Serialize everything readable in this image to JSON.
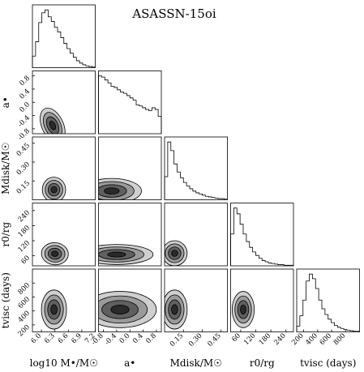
{
  "chart_data": {
    "type": "corner",
    "title": "ASASSN-15oi",
    "parameters": [
      {
        "key": "logM",
        "label_main": "log10 M•/M☉",
        "label_side": "",
        "range": [
          5.8,
          7.2
        ],
        "ticks": [
          "6.0",
          "6.3",
          "6.6",
          "6.9",
          "7.2"
        ],
        "tick_values": [
          6.0,
          6.3,
          6.6,
          6.9,
          7.2
        ],
        "peak": 6.25,
        "spread": 0.2
      },
      {
        "key": "a",
        "label_main": "a•",
        "label_side": "a•",
        "range": [
          -0.95,
          0.95
        ],
        "ticks": [
          "-0.8",
          "-0.4",
          "0.0",
          "0.4",
          "0.8"
        ],
        "tick_values": [
          -0.8,
          -0.4,
          0.0,
          0.4,
          0.8
        ],
        "peak": -0.75,
        "spread": 0.7
      },
      {
        "key": "Mdisk",
        "label_main": "Mdisk/M☉",
        "label_side": "Mdisk/M☉",
        "range": [
          0.0,
          0.5
        ],
        "ticks": [
          "0.15",
          "0.30",
          "0.45"
        ],
        "tick_values": [
          0.15,
          0.3,
          0.45
        ],
        "side_ticks": [
          "0.15",
          "0.30",
          "0.45"
        ],
        "peak": 0.07,
        "spread": 0.06
      },
      {
        "key": "r0",
        "label_main": "r0/rg",
        "label_side": "r0/rg",
        "range": [
          20,
          270
        ],
        "ticks": [
          "60",
          "120",
          "180",
          "240"
        ],
        "tick_values": [
          60,
          120,
          180,
          240
        ],
        "side_ticks": [
          "60",
          "120",
          "180",
          "240"
        ],
        "peak": 65,
        "spread": 30
      },
      {
        "key": "tvisc",
        "label_main": "tvisc (days)",
        "label_side": "tvisc (days)",
        "range": [
          100,
          1000
        ],
        "ticks": [
          "200",
          "400",
          "600",
          "800"
        ],
        "tick_values": [
          200,
          400,
          600,
          800
        ],
        "side_ticks": [
          "200",
          "400",
          "600",
          "800"
        ],
        "peak": 400,
        "spread": 110
      }
    ],
    "histograms": {
      "logM": [
        0.2,
        0.45,
        0.78,
        0.95,
        1.0,
        0.88,
        0.8,
        0.7,
        0.62,
        0.52,
        0.42,
        0.33,
        0.25,
        0.18,
        0.12,
        0.08,
        0.05,
        0.03,
        0.02,
        0.01
      ],
      "a": [
        1.0,
        0.98,
        0.93,
        0.88,
        0.82,
        0.8,
        0.76,
        0.72,
        0.7,
        0.66,
        0.62,
        0.58,
        0.5,
        0.48,
        0.45,
        0.42,
        0.4,
        0.45,
        0.42,
        0.3
      ],
      "Mdisk": [
        0.4,
        1.0,
        0.85,
        0.62,
        0.48,
        0.38,
        0.3,
        0.24,
        0.19,
        0.15,
        0.12,
        0.1,
        0.08,
        0.06,
        0.05,
        0.04,
        0.03,
        0.02,
        0.02,
        0.01
      ],
      "r0": [
        0.55,
        1.0,
        0.9,
        0.72,
        0.55,
        0.42,
        0.32,
        0.24,
        0.18,
        0.13,
        0.09,
        0.07,
        0.05,
        0.04,
        0.03,
        0.02,
        0.02,
        0.01,
        0.01,
        0.01
      ],
      "tvisc": [
        0.1,
        0.28,
        0.55,
        0.88,
        1.0,
        0.92,
        0.75,
        0.55,
        0.4,
        0.3,
        0.22,
        0.16,
        0.11,
        0.08,
        0.06,
        0.04,
        0.03,
        0.02,
        0.01,
        0.01
      ]
    },
    "contours": {
      "a|logM": {
        "cx": 6.25,
        "cy": -0.7,
        "sx": 0.12,
        "sy": 0.28,
        "rho": 0.55
      },
      "Mdisk|logM": {
        "cx": 6.28,
        "cy": 0.08,
        "sx": 0.13,
        "sy": 0.05,
        "rho": 0.1
      },
      "Mdisk|a": {
        "cx": -0.55,
        "cy": 0.07,
        "sx": 0.45,
        "sy": 0.05,
        "rho": 0.0
      },
      "r0|logM": {
        "cx": 6.3,
        "cy": 68,
        "sx": 0.15,
        "sy": 22,
        "rho": -0.1
      },
      "r0|a": {
        "cx": -0.4,
        "cy": 65,
        "sx": 0.55,
        "sy": 20,
        "rho": 0.0
      },
      "r0|Mdisk": {
        "cx": 0.08,
        "cy": 70,
        "sx": 0.05,
        "sy": 25,
        "rho": 0.0
      },
      "tvisc|logM": {
        "cx": 6.28,
        "cy": 420,
        "sx": 0.14,
        "sy": 140,
        "rho": 0.0
      },
      "tvisc|a": {
        "cx": -0.3,
        "cy": 420,
        "sx": 0.55,
        "sy": 130,
        "rho": 0.0
      },
      "tvisc|Mdisk": {
        "cx": 0.08,
        "cy": 420,
        "sx": 0.05,
        "sy": 140,
        "rho": 0.0
      },
      "tvisc|r0": {
        "cx": 70,
        "cy": 420,
        "sx": 22,
        "sy": 130,
        "rho": 0.0
      }
    },
    "levels": [
      0.5,
      1.0,
      1.5,
      2.0
    ],
    "fill_colors": [
      "#f2f2f2",
      "#cfcfcf",
      "#9a9a9a",
      "#606060",
      "#2a2a2a"
    ],
    "grid": false
  }
}
